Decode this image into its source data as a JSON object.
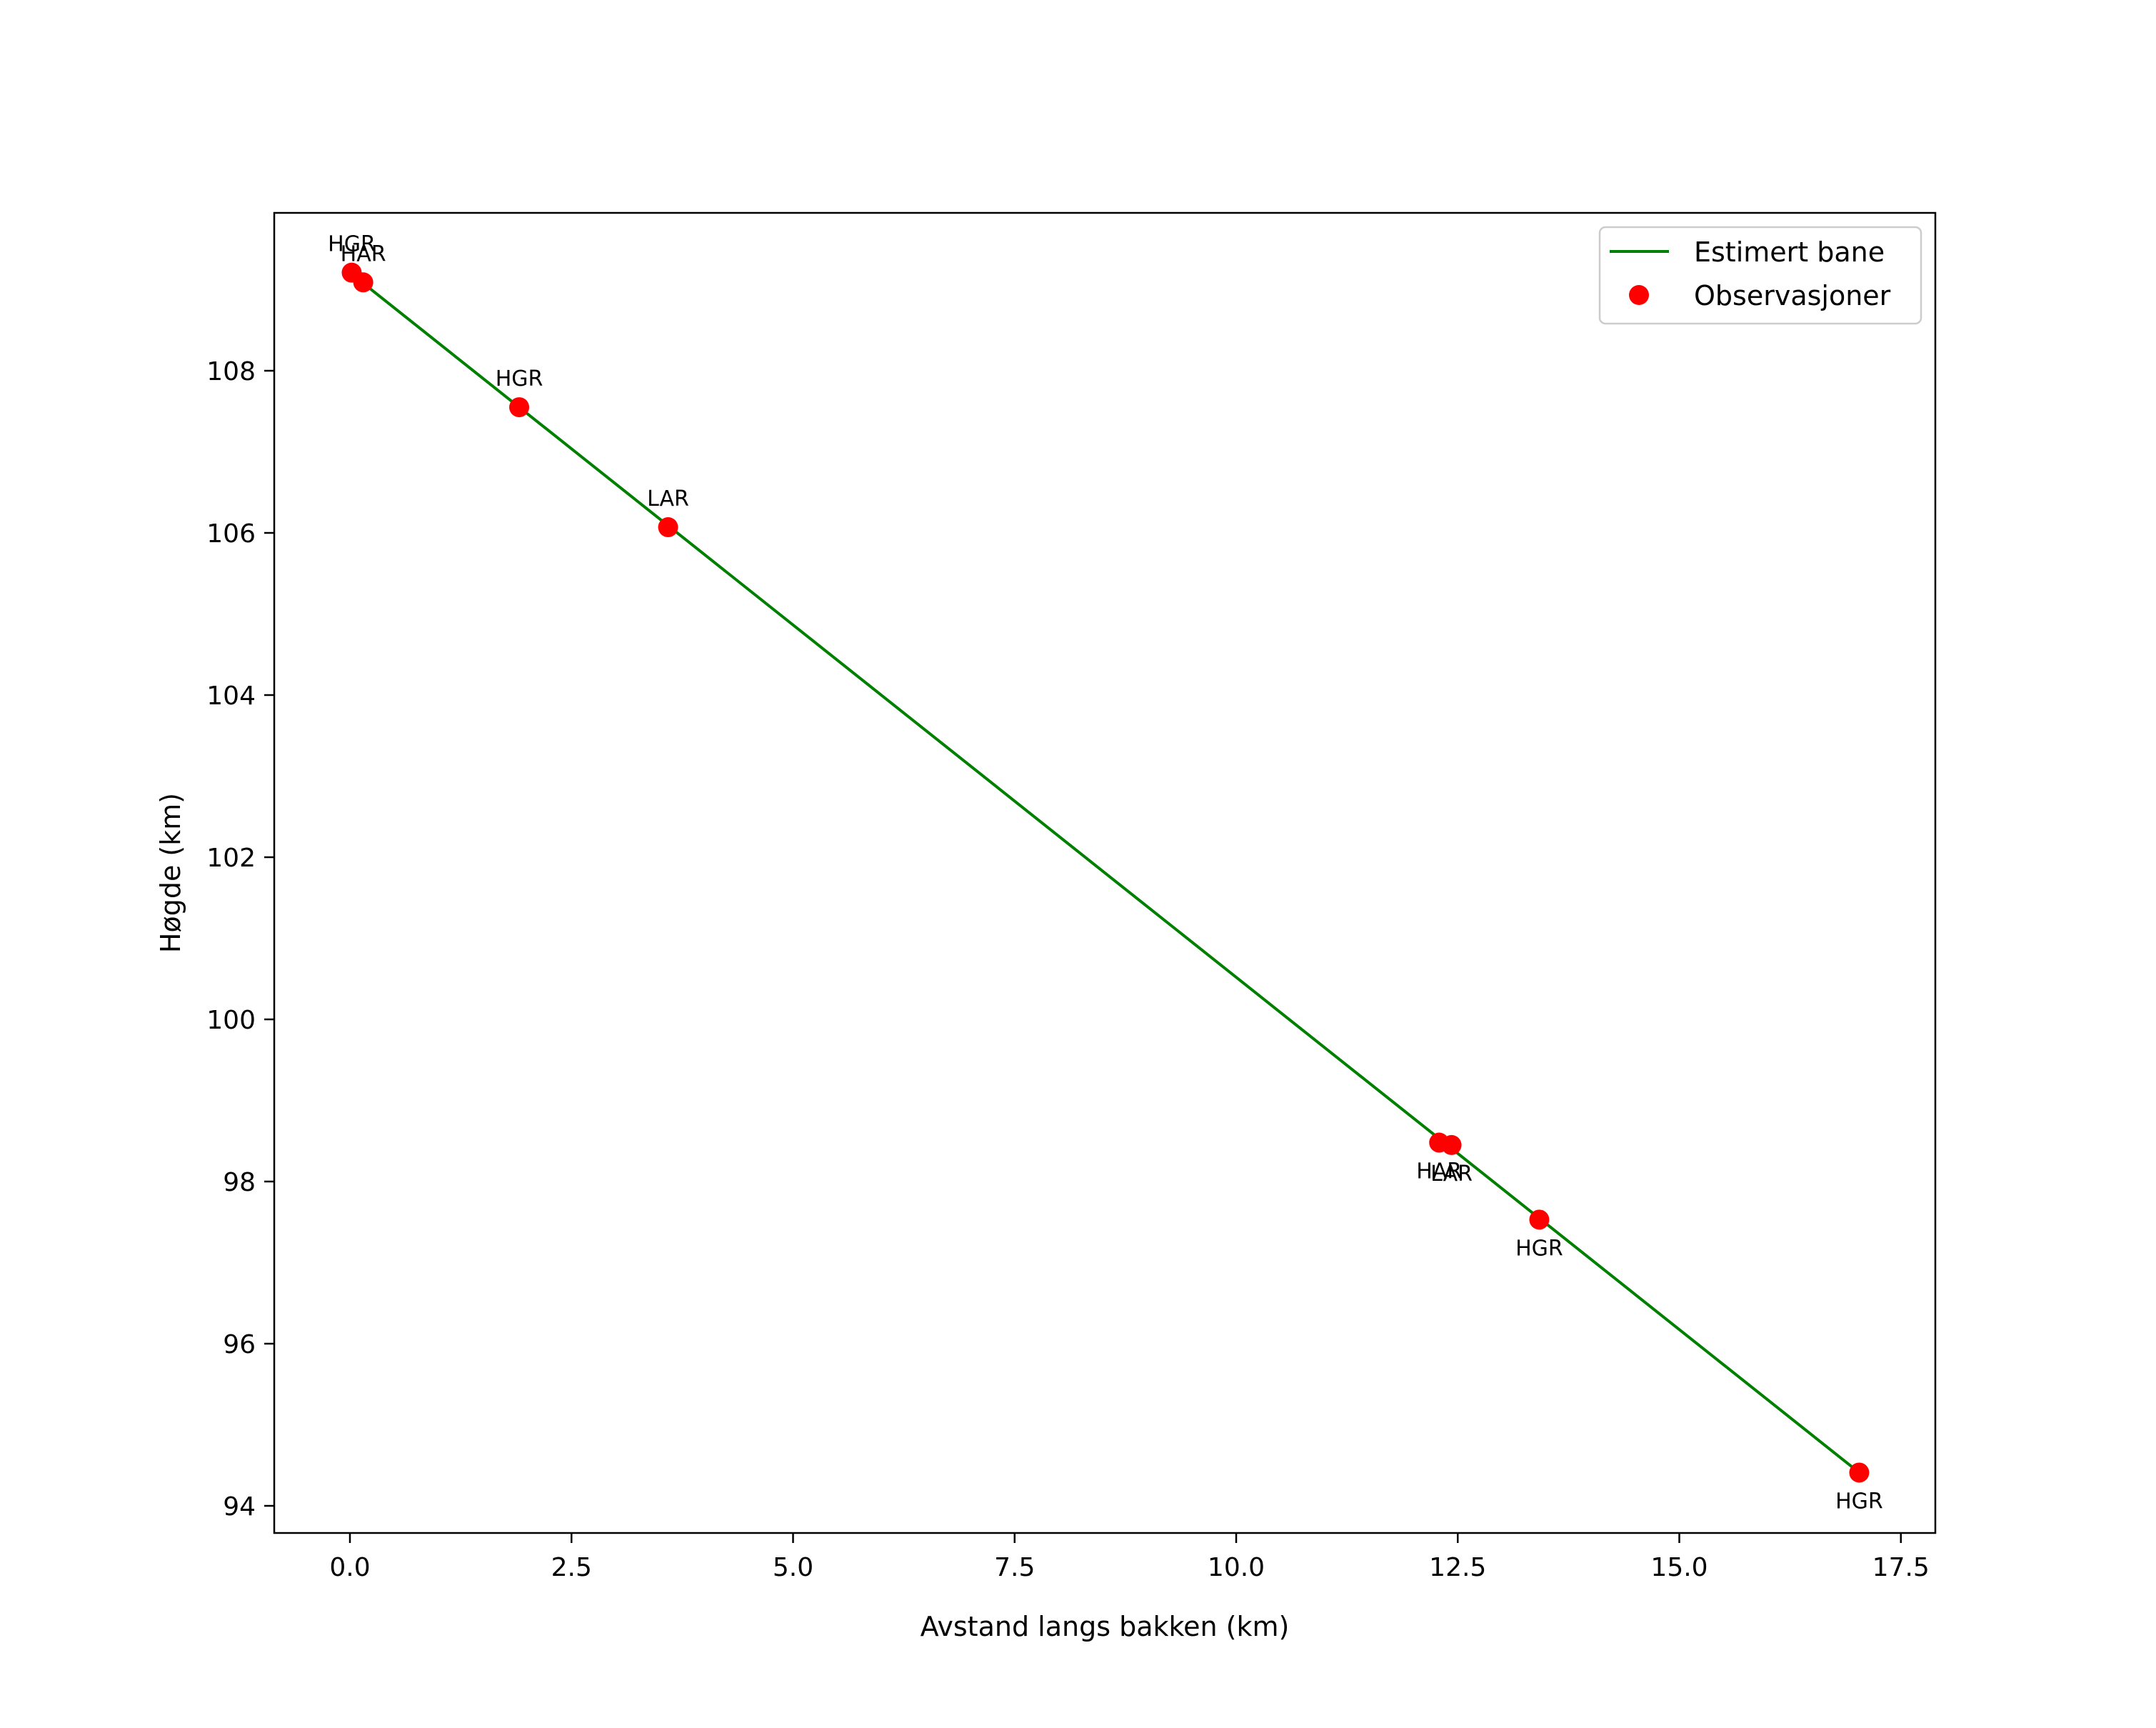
{
  "chart_data": {
    "type": "line",
    "title": "",
    "xlabel": "Avstand langs bakken (km)",
    "ylabel": "Høgde (km)",
    "xlim": [
      -0.86,
      17.8
    ],
    "ylim": [
      93.7,
      109.8
    ],
    "grid": false,
    "legend_position": "upper right",
    "x_ticks": [
      "0.0",
      "2.5",
      "5.0",
      "7.5",
      "10.0",
      "12.5",
      "15.0",
      "17.5"
    ],
    "x_tick_values": [
      0.0,
      2.5,
      5.0,
      7.5,
      10.0,
      12.5,
      15.0,
      17.5
    ],
    "y_ticks": [
      "94",
      "96",
      "98",
      "100",
      "102",
      "104",
      "106",
      "108"
    ],
    "y_tick_values": [
      94,
      96,
      98,
      100,
      102,
      104,
      106,
      108
    ],
    "series": [
      {
        "name": "Estimert bane",
        "type": "line",
        "color": "#008000",
        "x": [
          0.0,
          17.03
        ],
        "y": [
          109.21,
          94.41
        ]
      },
      {
        "name": "Observasjoner",
        "type": "scatter",
        "color": "#ff0000",
        "points": [
          {
            "x": 0.02,
            "y": 109.21,
            "label": "HGR",
            "label_pos": "above"
          },
          {
            "x": 0.15,
            "y": 109.09,
            "label": "HAR",
            "label_pos": "above"
          },
          {
            "x": 1.91,
            "y": 107.55,
            "label": "HGR",
            "label_pos": "above"
          },
          {
            "x": 3.59,
            "y": 106.07,
            "label": "LAR",
            "label_pos": "above"
          },
          {
            "x": 12.29,
            "y": 98.48,
            "label": "HAR",
            "label_pos": "below"
          },
          {
            "x": 12.43,
            "y": 98.45,
            "label": "LAR",
            "label_pos": "below"
          },
          {
            "x": 13.42,
            "y": 97.53,
            "label": "HGR",
            "label_pos": "below"
          },
          {
            "x": 17.03,
            "y": 94.41,
            "label": "HGR",
            "label_pos": "below"
          }
        ]
      }
    ]
  },
  "legend": {
    "items": [
      {
        "label": "Estimert bane",
        "marker": "line",
        "color": "#008000"
      },
      {
        "label": "Observasjoner",
        "marker": "circle",
        "color": "#ff0000"
      }
    ]
  },
  "axes": {
    "xlabel": "Avstand langs bakken (km)",
    "ylabel": "Høgde (km)"
  }
}
